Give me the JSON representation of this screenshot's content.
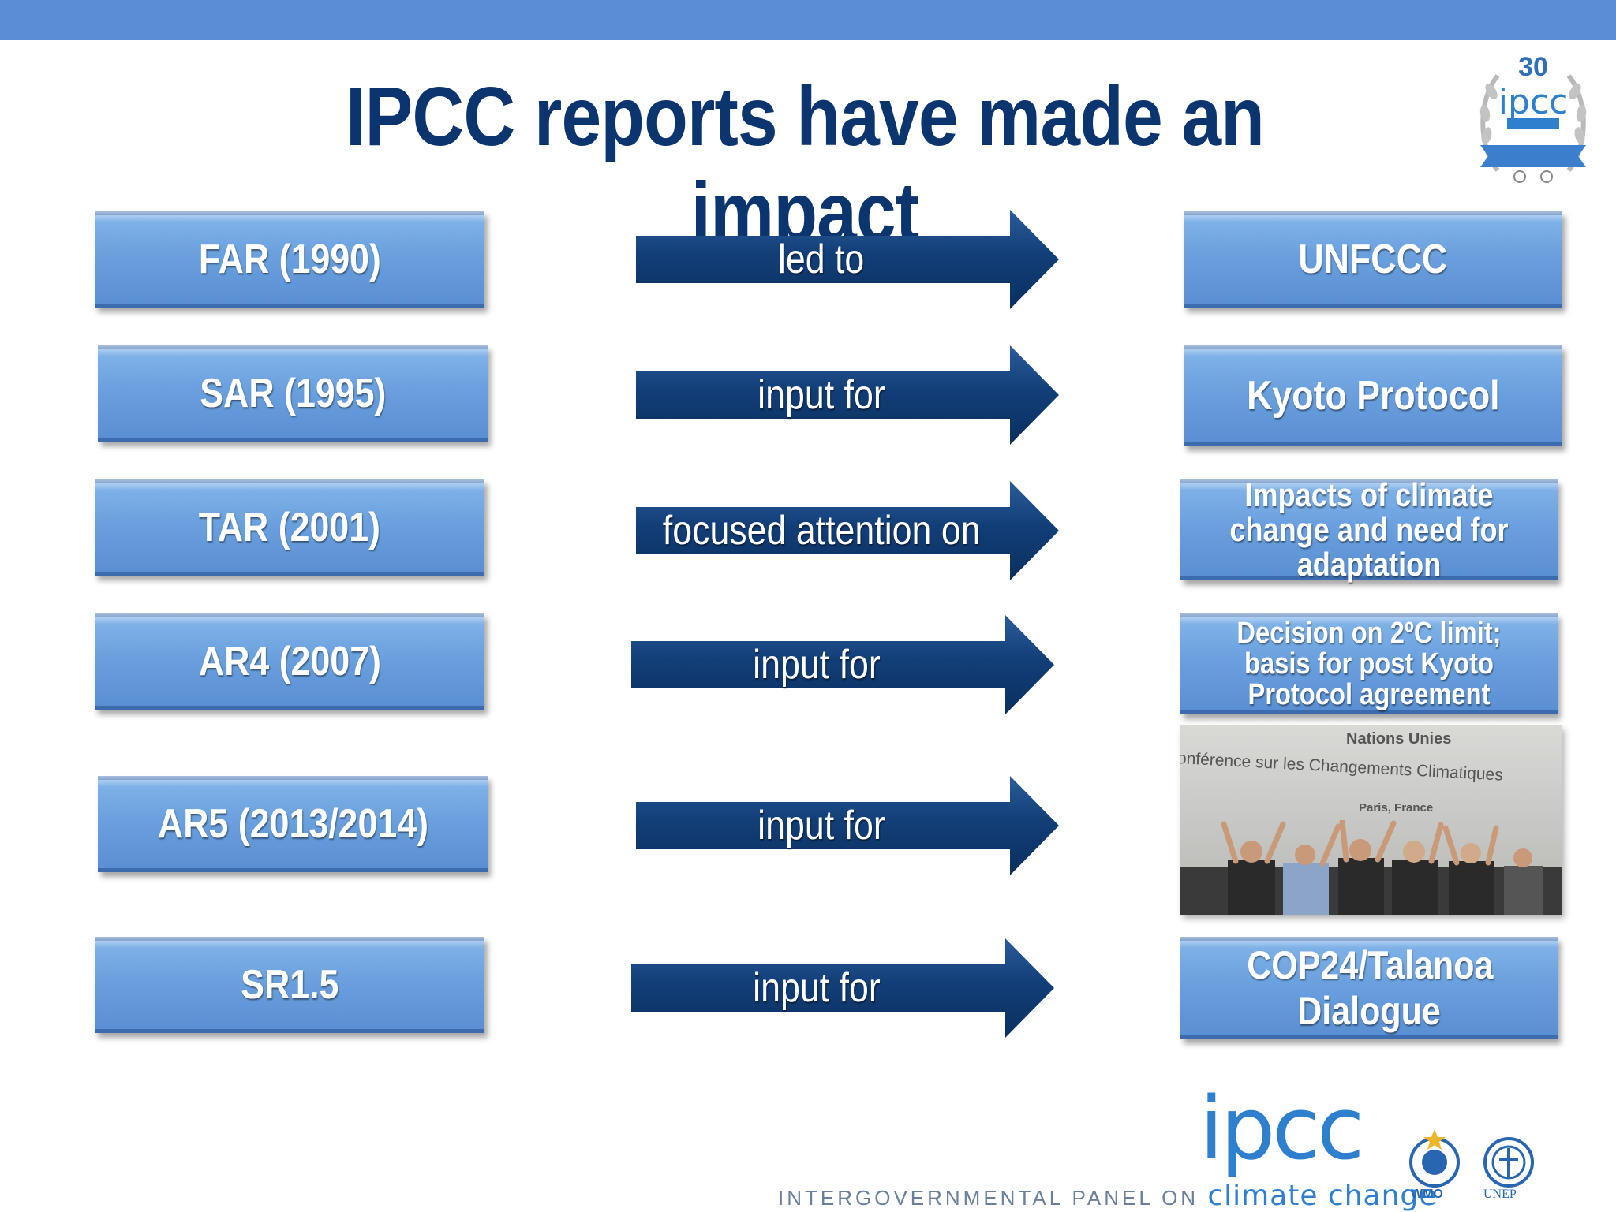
{
  "slide": {
    "title": "IPCC reports have made an impact"
  },
  "badge": {
    "number": "30",
    "name": "ipcc"
  },
  "rows": [
    {
      "report": "FAR (1990)",
      "relation": "led to",
      "outcome": "UNFCCC"
    },
    {
      "report": "SAR (1995)",
      "relation": "input for",
      "outcome": "Kyoto Protocol"
    },
    {
      "report": "TAR (2001)",
      "relation": "focused attention on",
      "outcome": "Impacts of climate change and need for adaptation"
    },
    {
      "report": "AR4 (2007)",
      "relation": "input for",
      "outcome": "Decision on 2ºC limit; basis for post Kyoto Protocol agreement"
    },
    {
      "report": "AR5 (2013/2014)",
      "relation": "input for",
      "outcome": ""
    },
    {
      "report": "SR1.5",
      "relation": "input for",
      "outcome": "COP24/Talanoa Dialogue"
    }
  ],
  "photo": {
    "line1": "Nations Unies",
    "line2": "onférence sur les Changements Climatiques",
    "line3": "Paris, France"
  },
  "footer": {
    "logo": "ipcc",
    "panel_text": "INTERGOVERNMENTAL PANEL ON",
    "climate_text": "climate change",
    "wmo": "WMO",
    "unep": "UNEP"
  },
  "colors": {
    "topbar": "#5b8dd6",
    "title": "#0c3570",
    "box": "#6aa0de",
    "arrow": "#0f3d75"
  }
}
